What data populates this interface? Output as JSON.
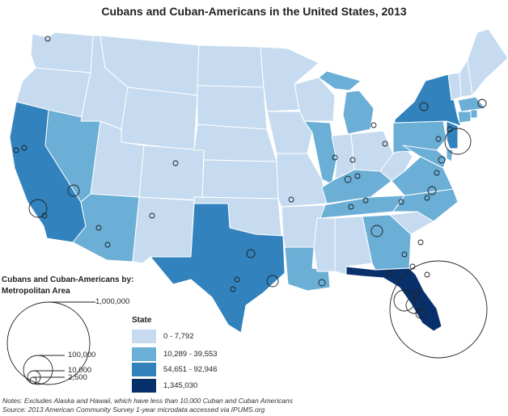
{
  "title": "Cubans and Cuban-Americans in the United States, 2013",
  "palette": {
    "tier1": "#c6dbef",
    "tier2": "#6baed6",
    "tier3": "#3182bd",
    "tier4": "#08306b"
  },
  "metro_legend": {
    "title_line1": "Cubans and  Cuban-Americans by:",
    "title_line2": "Metropolitan Area",
    "sizes": [
      {
        "label": "1,000,000",
        "value": 1000000
      },
      {
        "label": "100,000",
        "value": 100000
      },
      {
        "label": "10,000",
        "value": 10000
      },
      {
        "label": "2,500",
        "value": 2500
      }
    ]
  },
  "state_legend": {
    "title": "State",
    "classes": [
      {
        "label": "0 - 7,792",
        "color": "#c6dbef"
      },
      {
        "label": "10,289 - 39,553",
        "color": "#6baed6"
      },
      {
        "label": "54,651 - 92,946",
        "color": "#3182bd"
      },
      {
        "label": "1,345,030",
        "color": "#08306b"
      }
    ]
  },
  "notes": {
    "line1": "Notes: Excludes Alaska and Hawaii, which have less than 10,000 Cuban and Cuban Americans",
    "line2": "Source: 2013 American Community Survey 1-year microdata accessed via IPUMS.org"
  }
}
